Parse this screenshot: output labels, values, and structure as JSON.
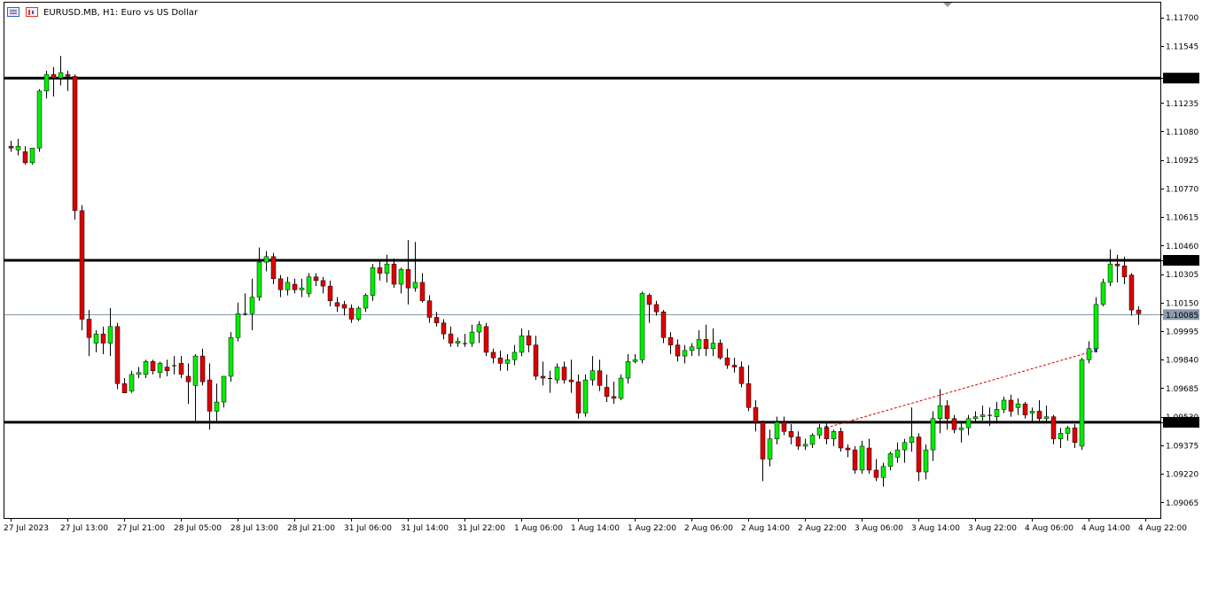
{
  "header": {
    "symbol": "EURUSD.MB",
    "timeframe": "H1:",
    "description": "Euro vs US Dollar"
  },
  "colors": {
    "bull": "#00ee00",
    "bear": "#dd0000",
    "wick": "#000000",
    "level_line": "#000000",
    "bid_line": "#8899aa",
    "trend_line": "#dd0000"
  },
  "chart_data": {
    "type": "candlestick",
    "ylim": [
      1.0898,
      1.1178
    ],
    "y_ticks": [
      "1.11700",
      "1.11545",
      "1.11370",
      "1.11235",
      "1.11080",
      "1.10925",
      "1.10770",
      "1.10615",
      "1.10460",
      "1.10380",
      "1.10305",
      "1.10150",
      "1.10085",
      "1.09995",
      "1.09840",
      "1.09685",
      "1.09530",
      "1.09500",
      "1.09375",
      "1.09220",
      "1.09065"
    ],
    "x_ticks": [
      {
        "label": "27 Jul 2023",
        "i": 0
      },
      {
        "label": "27 Jul 13:00",
        "i": 8
      },
      {
        "label": "27 Jul 21:00",
        "i": 16
      },
      {
        "label": "28 Jul 05:00",
        "i": 24
      },
      {
        "label": "28 Jul 13:00",
        "i": 32
      },
      {
        "label": "28 Jul 21:00",
        "i": 40
      },
      {
        "label": "31 Jul 06:00",
        "i": 48
      },
      {
        "label": "31 Jul 14:00",
        "i": 56
      },
      {
        "label": "31 Jul 22:00",
        "i": 64
      },
      {
        "label": "1 Aug 06:00",
        "i": 72
      },
      {
        "label": "1 Aug 14:00",
        "i": 80
      },
      {
        "label": "1 Aug 22:00",
        "i": 88
      },
      {
        "label": "2 Aug 06:00",
        "i": 96
      },
      {
        "label": "2 Aug 14:00",
        "i": 104
      },
      {
        "label": "2 Aug 22:00",
        "i": 112
      },
      {
        "label": "3 Aug 06:00",
        "i": 120
      },
      {
        "label": "3 Aug 14:00",
        "i": 128
      },
      {
        "label": "3 Aug 22:00",
        "i": 136
      },
      {
        "label": "4 Aug 06:00",
        "i": 144
      },
      {
        "label": "4 Aug 14:00",
        "i": 152
      },
      {
        "label": "4 Aug 22:00",
        "i": 160
      }
    ],
    "levels": [
      {
        "price": 1.1137,
        "label": "1.11370"
      },
      {
        "price": 1.1038,
        "label": "1.10380"
      },
      {
        "price": 1.095,
        "label": "1.09500"
      }
    ],
    "bid": {
      "price": 1.10085,
      "label": "1.10085"
    },
    "trendline": {
      "from": [
        115,
        1.0947
      ],
      "to": [
        153,
        1.0989
      ]
    },
    "candles": [
      [
        1.11,
        1.1103,
        1.1097,
        1.1099
      ],
      [
        1.1098,
        1.1104,
        1.1095,
        1.11
      ],
      [
        1.1097,
        1.11,
        1.109,
        1.1091
      ],
      [
        1.1091,
        1.1098,
        1.109,
        1.1099
      ],
      [
        1.1099,
        1.1131,
        1.1097,
        1.113
      ],
      [
        1.113,
        1.1141,
        1.1126,
        1.1139
      ],
      [
        1.1139,
        1.1143,
        1.1127,
        1.1137
      ],
      [
        1.1137,
        1.1149,
        1.1133,
        1.114
      ],
      [
        1.1139,
        1.1141,
        1.113,
        1.1138
      ],
      [
        1.1138,
        1.1139,
        1.106,
        1.1065
      ],
      [
        1.1065,
        1.1068,
        1.1,
        1.1006
      ],
      [
        1.1006,
        1.1011,
        1.0986,
        1.0996
      ],
      [
        1.0993,
        1.1,
        1.0988,
        1.0998
      ],
      [
        1.0998,
        1.1002,
        1.0987,
        1.0993
      ],
      [
        1.0993,
        1.1012,
        1.0986,
        1.1002
      ],
      [
        1.1002,
        1.1004,
        1.0968,
        1.0971
      ],
      [
        1.0971,
        1.0974,
        1.0966,
        1.0966
      ],
      [
        1.0967,
        1.0978,
        1.0966,
        1.0976
      ],
      [
        1.0976,
        1.098,
        1.0974,
        1.0977
      ],
      [
        1.0976,
        1.0984,
        1.0974,
        1.0983
      ],
      [
        1.0983,
        1.0984,
        1.0976,
        1.0978
      ],
      [
        1.0977,
        1.0983,
        1.0974,
        1.0982
      ],
      [
        1.098,
        1.0984,
        1.0975,
        1.0978
      ],
      [
        1.0981,
        1.0986,
        1.0976,
        1.0981
      ],
      [
        1.0982,
        1.0986,
        1.0974,
        1.0976
      ],
      [
        1.0975,
        1.0982,
        1.096,
        1.0972
      ],
      [
        1.097,
        1.0987,
        1.095,
        1.0986
      ],
      [
        1.0986,
        1.099,
        1.097,
        1.0972
      ],
      [
        1.0973,
        1.0982,
        1.0946,
        1.0956
      ],
      [
        1.0956,
        1.0971,
        1.095,
        1.0961
      ],
      [
        1.0961,
        1.0975,
        1.0958,
        1.0975
      ],
      [
        1.0975,
        1.0999,
        1.0972,
        1.0996
      ],
      [
        1.0996,
        1.1015,
        1.0994,
        1.1009
      ],
      [
        1.1009,
        1.102,
        1.1008,
        1.1009
      ],
      [
        1.1009,
        1.1028,
        1.1,
        1.1018
      ],
      [
        1.1018,
        1.1045,
        1.1016,
        1.1037
      ],
      [
        1.1037,
        1.1043,
        1.1032,
        1.104
      ],
      [
        1.104,
        1.1042,
        1.1025,
        1.1028
      ],
      [
        1.1028,
        1.103,
        1.1018,
        1.1022
      ],
      [
        1.1022,
        1.1029,
        1.1019,
        1.1026
      ],
      [
        1.1025,
        1.1028,
        1.102,
        1.1022
      ],
      [
        1.1022,
        1.1028,
        1.1018,
        1.1023
      ],
      [
        1.102,
        1.1031,
        1.1018,
        1.1029
      ],
      [
        1.1029,
        1.1031,
        1.1024,
        1.1027
      ],
      [
        1.1027,
        1.1029,
        1.102,
        1.1024
      ],
      [
        1.1024,
        1.1027,
        1.1013,
        1.1016
      ],
      [
        1.1015,
        1.1018,
        1.101,
        1.1013
      ],
      [
        1.1014,
        1.1016,
        1.1008,
        1.1012
      ],
      [
        1.1012,
        1.1014,
        1.1004,
        1.1006
      ],
      [
        1.1006,
        1.1013,
        1.1005,
        1.1012
      ],
      [
        1.1012,
        1.102,
        1.101,
        1.1019
      ],
      [
        1.1019,
        1.1036,
        1.1016,
        1.1034
      ],
      [
        1.1034,
        1.1038,
        1.1027,
        1.1031
      ],
      [
        1.1031,
        1.1041,
        1.1026,
        1.1036
      ],
      [
        1.1036,
        1.1039,
        1.1023,
        1.1025
      ],
      [
        1.1025,
        1.1034,
        1.102,
        1.1033
      ],
      [
        1.1033,
        1.1049,
        1.1014,
        1.1023
      ],
      [
        1.1023,
        1.1048,
        1.1021,
        1.1026
      ],
      [
        1.1026,
        1.1031,
        1.1015,
        1.1016
      ],
      [
        1.1016,
        1.1019,
        1.1004,
        1.1007
      ],
      [
        1.1007,
        1.101,
        1.1002,
        1.1004
      ],
      [
        1.1004,
        1.1006,
        1.0995,
        1.0998
      ],
      [
        1.0998,
        1.1002,
        1.0991,
        1.0993
      ],
      [
        1.0993,
        1.0996,
        1.0991,
        1.0994
      ],
      [
        1.0993,
        1.0998,
        1.0991,
        1.0993
      ],
      [
        1.0993,
        1.1003,
        1.0991,
        1.0999
      ],
      [
        1.0999,
        1.1005,
        1.0993,
        1.1003
      ],
      [
        1.1002,
        1.1004,
        1.0986,
        1.0988
      ],
      [
        1.0988,
        1.099,
        1.0982,
        1.0985
      ],
      [
        1.0985,
        1.0989,
        1.0978,
        1.0982
      ],
      [
        1.0982,
        1.0987,
        1.0978,
        1.0984
      ],
      [
        1.0984,
        1.0992,
        1.0981,
        1.0988
      ],
      [
        1.0988,
        1.1001,
        1.0986,
        1.0997
      ],
      [
        1.0997,
        1.1,
        1.0988,
        1.0992
      ],
      [
        1.0992,
        1.0997,
        1.0973,
        1.0975
      ],
      [
        1.0975,
        1.0983,
        1.097,
        1.0974
      ],
      [
        1.0974,
        1.0978,
        1.0966,
        1.0974
      ],
      [
        1.0973,
        1.0982,
        1.0971,
        1.098
      ],
      [
        1.098,
        1.0983,
        1.0971,
        1.0973
      ],
      [
        1.0973,
        1.0984,
        1.0966,
        1.0972
      ],
      [
        1.0972,
        1.0976,
        1.0952,
        1.0955
      ],
      [
        1.0955,
        1.0976,
        1.0953,
        1.0973
      ],
      [
        1.0973,
        1.0986,
        1.097,
        1.0978
      ],
      [
        1.0978,
        1.0984,
        1.0967,
        1.097
      ],
      [
        1.0969,
        1.0976,
        1.0961,
        1.0964
      ],
      [
        1.0964,
        1.0972,
        1.096,
        1.0963
      ],
      [
        1.0963,
        1.0976,
        1.0962,
        1.0974
      ],
      [
        1.0974,
        1.0987,
        1.0971,
        1.0983
      ],
      [
        1.0983,
        1.0987,
        1.0982,
        1.0984
      ],
      [
        1.0984,
        1.1021,
        1.0982,
        1.102
      ],
      [
        1.1019,
        1.102,
        1.1004,
        1.1014
      ],
      [
        1.1014,
        1.1016,
        1.1008,
        1.101
      ],
      [
        1.101,
        1.1011,
        1.0993,
        1.0996
      ],
      [
        1.0996,
        1.0999,
        1.0987,
        1.0992
      ],
      [
        1.0992,
        1.0995,
        1.0983,
        1.0986
      ],
      [
        1.0986,
        1.0992,
        1.0982,
        1.0989
      ],
      [
        1.0989,
        1.0993,
        1.0986,
        1.0991
      ],
      [
        1.099,
        1.1,
        1.0986,
        1.0995
      ],
      [
        1.0995,
        1.1003,
        1.0986,
        1.099
      ],
      [
        1.099,
        1.1001,
        1.0986,
        1.0993
      ],
      [
        1.0993,
        1.0995,
        1.0984,
        1.0985
      ],
      [
        1.0985,
        1.099,
        1.0979,
        1.0981
      ],
      [
        1.0981,
        1.0985,
        1.0977,
        1.098
      ],
      [
        1.098,
        1.0983,
        1.0969,
        1.0971
      ],
      [
        1.0971,
        1.0981,
        1.0956,
        1.0958
      ],
      [
        1.0958,
        1.0962,
        1.0945,
        1.095
      ],
      [
        1.095,
        1.0951,
        1.0918,
        1.093
      ],
      [
        1.093,
        1.0946,
        1.0926,
        1.0941
      ],
      [
        1.0941,
        1.0953,
        1.0938,
        1.095
      ],
      [
        1.095,
        1.0953,
        1.0943,
        1.0945
      ],
      [
        1.0945,
        1.0949,
        1.0938,
        1.0942
      ],
      [
        1.0942,
        1.0945,
        1.0935,
        1.0937
      ],
      [
        1.0937,
        1.0941,
        1.0935,
        1.0938
      ],
      [
        1.0938,
        1.0944,
        1.0936,
        1.0943
      ],
      [
        1.0943,
        1.0949,
        1.0941,
        1.0947
      ],
      [
        1.0947,
        1.095,
        1.0938,
        1.0941
      ],
      [
        1.0941,
        1.0946,
        1.0937,
        1.0945
      ],
      [
        1.0945,
        1.0947,
        1.0934,
        1.0936
      ],
      [
        1.0936,
        1.0938,
        1.0931,
        1.0935
      ],
      [
        1.0935,
        1.0937,
        1.0922,
        1.0924
      ],
      [
        1.0924,
        1.094,
        1.0922,
        1.0937
      ],
      [
        1.0936,
        1.0941,
        1.0922,
        1.0924
      ],
      [
        1.0924,
        1.093,
        1.0918,
        1.092
      ],
      [
        1.092,
        1.0928,
        1.0915,
        1.0926
      ],
      [
        1.0926,
        1.0934,
        1.0924,
        1.0933
      ],
      [
        1.0931,
        1.0939,
        1.0928,
        1.0935
      ],
      [
        1.0935,
        1.0941,
        1.0928,
        1.0939
      ],
      [
        1.0939,
        1.0958,
        1.0934,
        1.0942
      ],
      [
        1.0942,
        1.0944,
        1.0918,
        1.0923
      ],
      [
        1.0923,
        1.0938,
        1.0919,
        1.0935
      ],
      [
        1.0935,
        1.0956,
        1.0929,
        1.0952
      ],
      [
        1.0952,
        1.0968,
        1.0944,
        1.0959
      ],
      [
        1.0959,
        1.0962,
        1.0946,
        1.0952
      ],
      [
        1.0952,
        1.0954,
        1.0944,
        1.0946
      ],
      [
        1.0946,
        1.095,
        1.0939,
        1.0947
      ],
      [
        1.0947,
        1.0954,
        1.0943,
        1.0952
      ],
      [
        1.0952,
        1.0956,
        1.095,
        1.0953
      ],
      [
        1.0953,
        1.0959,
        1.0951,
        1.0954
      ],
      [
        1.0954,
        1.0958,
        1.0948,
        1.0954
      ],
      [
        1.0953,
        1.0961,
        1.095,
        1.0957
      ],
      [
        1.0957,
        1.0964,
        1.0955,
        1.0962
      ],
      [
        1.0962,
        1.0965,
        1.0953,
        1.0956
      ],
      [
        1.0958,
        1.0963,
        1.0954,
        1.096
      ],
      [
        1.096,
        1.0961,
        1.0952,
        1.0954
      ],
      [
        1.0955,
        1.0958,
        1.095,
        1.0956
      ],
      [
        1.0956,
        1.0962,
        1.095,
        1.0952
      ],
      [
        1.0952,
        1.0959,
        1.095,
        1.0953
      ],
      [
        1.0953,
        1.0954,
        1.0938,
        1.0941
      ],
      [
        1.0941,
        1.0947,
        1.0936,
        1.0944
      ],
      [
        1.0944,
        1.0948,
        1.094,
        1.0947
      ],
      [
        1.0947,
        1.0949,
        1.0936,
        1.0939
      ],
      [
        1.0937,
        1.0985,
        1.0935,
        1.0984
      ],
      [
        1.0984,
        1.0994,
        1.0982,
        1.099
      ],
      [
        1.099,
        1.1018,
        1.0988,
        1.1014
      ],
      [
        1.1014,
        1.1028,
        1.1013,
        1.1026
      ],
      [
        1.1026,
        1.1044,
        1.1024,
        1.1036
      ],
      [
        1.1036,
        1.1041,
        1.1026,
        1.1035
      ],
      [
        1.1035,
        1.104,
        1.1025,
        1.1029
      ],
      [
        1.103,
        1.1031,
        1.1008,
        1.1011
      ],
      [
        1.1011,
        1.1013,
        1.1003,
        1.1009
      ]
    ]
  }
}
